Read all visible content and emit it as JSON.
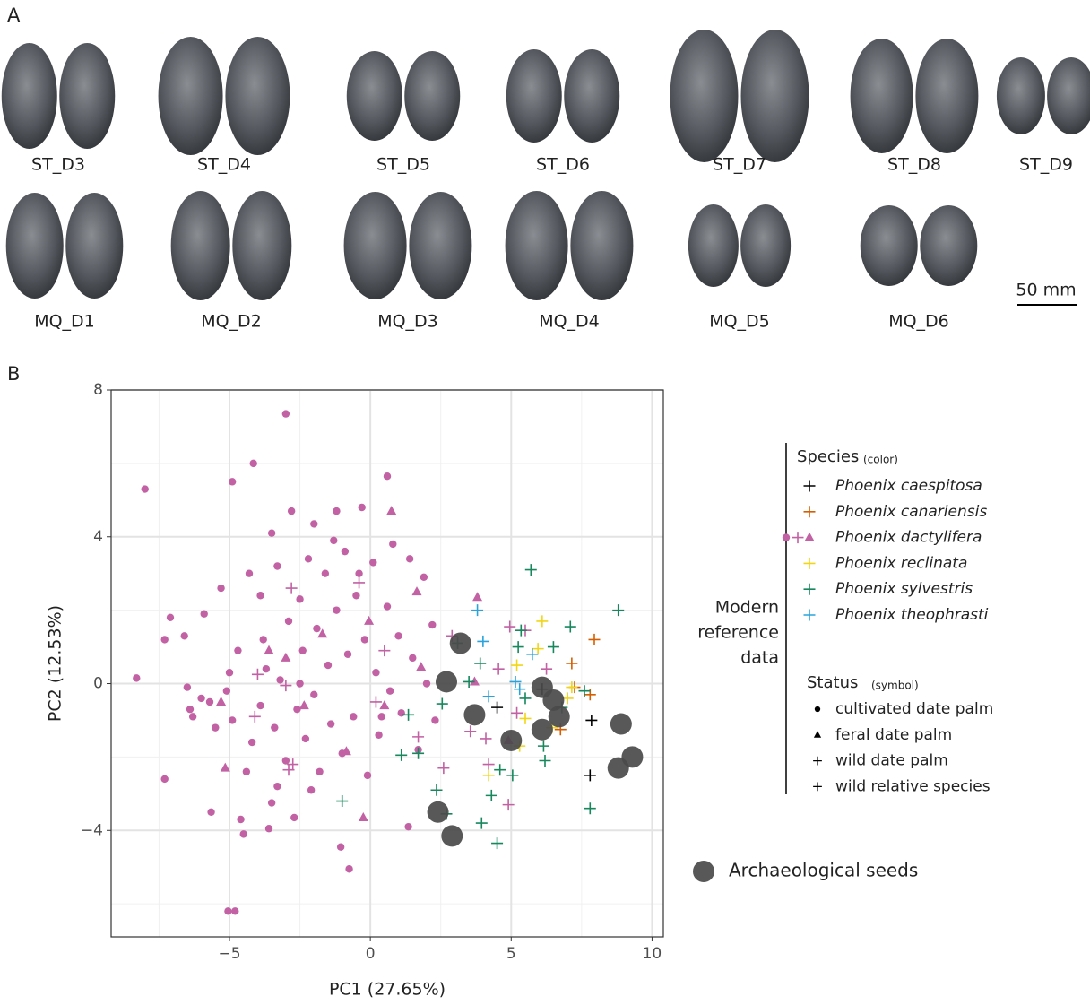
{
  "panel_a": {
    "label": "A",
    "row1": [
      "ST_D3",
      "ST_D4",
      "ST_D5",
      "ST_D6",
      "ST_D7",
      "ST_D8",
      "ST_D9"
    ],
    "row2": [
      "MQ_D1",
      "MQ_D2",
      "MQ_D3",
      "MQ_D4",
      "MQ_D5",
      "MQ_D6"
    ],
    "scale_bar": "50 mm"
  },
  "chart_data": {
    "type": "scatter",
    "panel_label": "B",
    "x_label": "PC1 (27.65%)",
    "y_label": "PC2 (12.53%)",
    "xlim": [
      -9.2,
      10.4
    ],
    "ylim": [
      -6.9,
      8
    ],
    "xticks": [
      {
        "value": -5,
        "label": "−5"
      },
      0,
      5,
      10
    ],
    "yticks": [
      {
        "value": -4,
        "label": "−4"
      },
      0,
      4,
      8
    ],
    "x_minor": [
      -7.5,
      -2.5,
      2.5,
      7.5
    ],
    "y_minor": [
      -6,
      -2,
      2,
      6
    ],
    "grid": true,
    "series": [
      {
        "color": "#c261a4",
        "marker": "circle",
        "x": [
          -8.0,
          -8.3,
          -7.3,
          -7.3,
          -7.1,
          -6.6,
          -6.5,
          -6.4,
          -6.3,
          -5.9,
          -5.7,
          -5.65,
          -5.5,
          -5.3,
          -5.1,
          -5.0,
          -5.05,
          -4.8,
          -4.9,
          -4.9,
          -4.6,
          -4.5,
          -4.4,
          -4.3,
          -4.2,
          -4.15,
          -3.9,
          -3.8,
          -3.7,
          -3.6,
          -3.5,
          -3.5,
          -3.4,
          -3.3,
          -3.2,
          -3.0,
          -3.0,
          -2.9,
          -2.8,
          -2.7,
          -2.6,
          -2.5,
          -2.4,
          -2.3,
          -2.2,
          -2.0,
          -2.0,
          -1.9,
          -1.8,
          -1.6,
          -1.5,
          -1.4,
          -1.2,
          -1.2,
          -1.05,
          -1.0,
          -0.9,
          -0.8,
          -0.75,
          -0.6,
          -0.5,
          -0.3,
          -0.2,
          -0.1,
          0.1,
          0.2,
          0.3,
          0.6,
          0.6,
          0.7,
          0.8,
          1.0,
          1.1,
          1.35,
          1.4,
          1.5,
          1.7,
          1.9,
          2.0,
          2.2,
          2.3,
          -3.3,
          -4.7,
          -6.0,
          -2.1,
          -1.3,
          -0.4,
          0.4,
          -3.9,
          -2.5
        ],
        "y": [
          5.3,
          0.15,
          1.2,
          -2.6,
          1.8,
          1.3,
          -0.1,
          -0.7,
          -0.9,
          1.9,
          -0.5,
          -3.5,
          -1.2,
          2.6,
          -0.2,
          0.3,
          -6.2,
          -6.2,
          5.5,
          -1.0,
          -3.7,
          -4.1,
          -2.4,
          3.0,
          -1.6,
          6.0,
          2.4,
          1.2,
          0.4,
          -3.95,
          4.1,
          -3.25,
          -1.2,
          3.2,
          0.1,
          7.35,
          -2.1,
          1.7,
          4.7,
          -3.65,
          -0.7,
          2.3,
          0.9,
          -1.5,
          3.4,
          4.35,
          -0.3,
          1.5,
          -2.4,
          3.0,
          0.5,
          -1.1,
          4.7,
          2.0,
          -4.45,
          -1.9,
          3.6,
          0.8,
          -5.05,
          -0.9,
          2.4,
          4.8,
          1.2,
          -2.5,
          3.3,
          0.3,
          -1.4,
          5.65,
          2.1,
          -0.2,
          3.8,
          1.3,
          -0.8,
          -3.9,
          3.4,
          0.7,
          -1.8,
          2.9,
          0.0,
          1.6,
          -1.0,
          -2.8,
          0.9,
          -0.4,
          -2.9,
          3.9,
          3.0,
          -0.9,
          -0.6,
          0.0
        ]
      },
      {
        "color": "#c261a4",
        "marker": "triangle",
        "x": [
          0.75,
          3.8,
          1.65,
          -0.05,
          -1.7,
          -3.6,
          -5.3,
          -5.15,
          -2.35,
          -0.85,
          -0.25,
          0.5,
          3.7,
          4.9,
          1.8,
          -3.0
        ],
        "y": [
          4.7,
          2.35,
          2.5,
          1.7,
          1.35,
          0.9,
          -0.5,
          -2.3,
          -0.6,
          -1.85,
          -3.65,
          -0.6,
          0.05,
          -1.55,
          0.45,
          0.7
        ]
      },
      {
        "color": "#c261a4",
        "marker": "plus",
        "x": [
          -2.8,
          -0.4,
          0.5,
          0.2,
          -3.0,
          -4.0,
          -4.1,
          -2.75,
          -2.9,
          1.7,
          2.6,
          4.9,
          4.2,
          3.55,
          4.95,
          5.5,
          4.55,
          6.25,
          5.2,
          4.1,
          2.9
        ],
        "y": [
          2.6,
          2.75,
          0.9,
          -0.5,
          -0.05,
          0.25,
          -0.9,
          -2.2,
          -2.35,
          -1.45,
          -2.3,
          -3.3,
          -2.2,
          -1.3,
          1.55,
          1.45,
          0.4,
          0.4,
          -0.8,
          -1.5,
          1.3
        ]
      },
      {
        "color": "#000000",
        "marker": "plus",
        "x": [
          7.85,
          7.8,
          4.5,
          6.1
        ],
        "y": [
          -1.0,
          -2.5,
          -0.65,
          -0.15
        ]
      },
      {
        "color": "#d55e00",
        "marker": "plus",
        "x": [
          7.95,
          7.15,
          7.25,
          7.8,
          6.75
        ],
        "y": [
          1.2,
          0.55,
          -0.1,
          -0.3,
          -1.25
        ]
      },
      {
        "color": "#f2d615",
        "marker": "plus",
        "x": [
          6.1,
          5.95,
          5.2,
          5.5,
          4.2,
          7.15,
          7.0,
          6.45,
          5.3
        ],
        "y": [
          1.7,
          0.95,
          0.5,
          -0.95,
          -2.5,
          -0.1,
          -0.4,
          -1.2,
          -1.7
        ]
      },
      {
        "color": "#17875e",
        "marker": "plus",
        "x": [
          5.7,
          8.8,
          7.1,
          6.5,
          5.35,
          5.25,
          3.1,
          3.9,
          3.5,
          2.55,
          1.35,
          1.1,
          1.7,
          2.35,
          2.7,
          -1.0,
          4.3,
          3.95,
          4.5,
          5.05,
          6.2,
          6.15,
          7.8,
          7.6,
          5.5,
          6.8,
          4.6
        ],
        "y": [
          3.1,
          2.0,
          1.55,
          1.0,
          1.45,
          1.0,
          1.1,
          0.55,
          0.05,
          -0.55,
          -0.85,
          -1.95,
          -1.9,
          -2.9,
          -3.55,
          -3.2,
          -3.05,
          -3.8,
          -4.35,
          -2.5,
          -2.1,
          -1.7,
          -3.4,
          -0.2,
          -0.4,
          -0.65,
          -2.35
        ]
      },
      {
        "color": "#2aa3dc",
        "marker": "plus",
        "x": [
          3.8,
          4.0,
          5.15,
          5.75,
          4.2,
          5.3
        ],
        "y": [
          2.0,
          1.15,
          0.05,
          0.8,
          -0.35,
          -0.15
        ]
      },
      {
        "color": "#4a4a4a",
        "marker": "big-circle",
        "x": [
          3.2,
          2.7,
          3.7,
          5.0,
          6.1,
          6.5,
          6.7,
          6.1,
          2.4,
          2.9,
          8.9,
          9.3,
          8.8
        ],
        "y": [
          1.1,
          0.05,
          -0.85,
          -1.55,
          -0.1,
          -0.45,
          -0.9,
          -1.25,
          -3.5,
          -4.15,
          -1.1,
          -2.0,
          -2.3
        ]
      }
    ],
    "legend": {
      "group_label": [
        "Modern",
        "reference",
        "data"
      ],
      "species_title": "Species",
      "species_note": "(color)",
      "species": [
        {
          "name": "Phoenix caespitosa",
          "color": "#000000",
          "markers": [
            "plus"
          ]
        },
        {
          "name": "Phoenix canariensis",
          "color": "#d55e00",
          "markers": [
            "plus"
          ]
        },
        {
          "name": "Phoenix dactylifera",
          "color": "#c261a4",
          "markers": [
            "circle",
            "plus",
            "triangle"
          ]
        },
        {
          "name": "Phoenix reclinata",
          "color": "#f2d615",
          "markers": [
            "plus"
          ]
        },
        {
          "name": "Phoenix sylvestris",
          "color": "#17875e",
          "markers": [
            "plus"
          ]
        },
        {
          "name": "Phoenix theophrasti",
          "color": "#2aa3dc",
          "markers": [
            "plus"
          ]
        }
      ],
      "status_title": "Status",
      "status_note": "(symbol)",
      "status": [
        {
          "label": "cultivated date palm",
          "marker": "circle"
        },
        {
          "label": "feral date palm",
          "marker": "triangle"
        },
        {
          "label": "wild date palm",
          "marker": "plus"
        },
        {
          "label": "wild relative species",
          "marker": "plus"
        }
      ],
      "archaeological": {
        "label": "Archaeological seeds",
        "color": "#4a4a4a"
      }
    }
  }
}
